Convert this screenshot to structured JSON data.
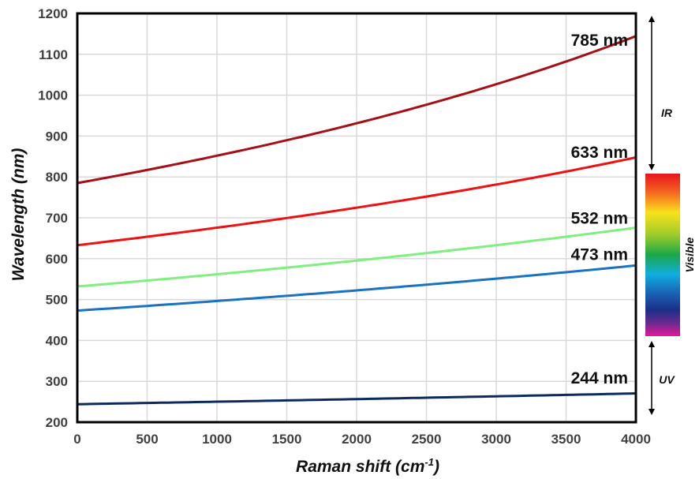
{
  "chart_data": {
    "type": "line",
    "xlabel": "Raman shift (cm",
    "xlabel_sup": "-1",
    "xlabel_end": ")",
    "ylabel": "Wavelength (nm)",
    "xlim": [
      0,
      4000
    ],
    "ylim": [
      200,
      1200
    ],
    "xticks": [
      0,
      500,
      1000,
      1500,
      2000,
      2500,
      3000,
      3500,
      4000
    ],
    "yticks": [
      200,
      300,
      400,
      500,
      600,
      700,
      800,
      900,
      1000,
      1100,
      1200
    ],
    "grid": true,
    "series": [
      {
        "name": "785 nm",
        "laser_nm": 785,
        "color": "#a50f15"
      },
      {
        "name": "633 nm",
        "laser_nm": 633,
        "color": "#ee1111"
      },
      {
        "name": "532 nm",
        "laser_nm": 532,
        "color": "#7ff07f"
      },
      {
        "name": "473 nm",
        "laser_nm": 473,
        "color": "#1a73c0"
      },
      {
        "name": "244 nm",
        "laser_nm": 244,
        "color": "#0d2a5e"
      }
    ],
    "bands": [
      {
        "label": "IR"
      },
      {
        "label": "Visible"
      },
      {
        "label": "UV"
      }
    ]
  }
}
